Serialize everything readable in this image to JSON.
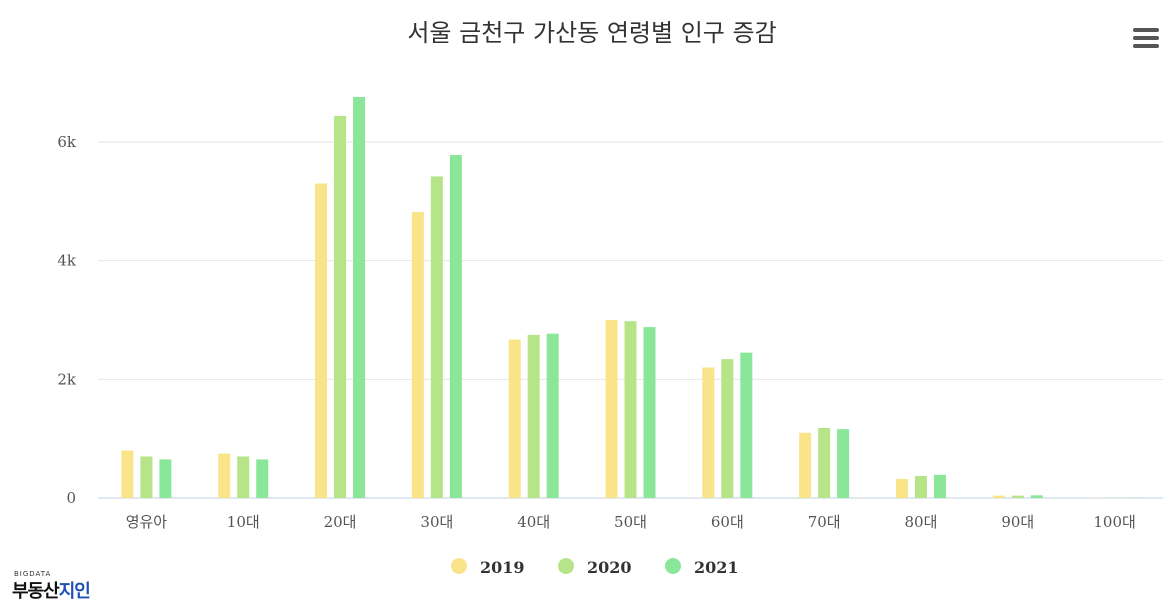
{
  "chart_data": {
    "type": "bar",
    "title": "서울 금천구 가산동 연령별 인구 증감",
    "categories": [
      "영유아",
      "10대",
      "20대",
      "30대",
      "40대",
      "50대",
      "60대",
      "70대",
      "80대",
      "90대",
      "100대"
    ],
    "series": [
      {
        "name": "2019",
        "color": "#f9e489",
        "values": [
          800,
          750,
          5300,
          4820,
          2670,
          3000,
          2200,
          1100,
          320,
          40,
          5
        ]
      },
      {
        "name": "2020",
        "color": "#b5e489",
        "values": [
          700,
          700,
          6440,
          5420,
          2750,
          2980,
          2340,
          1180,
          370,
          40,
          5
        ]
      },
      {
        "name": "2021",
        "color": "#8ae698",
        "values": [
          650,
          650,
          6760,
          5780,
          2770,
          2880,
          2450,
          1160,
          390,
          45,
          5
        ]
      }
    ],
    "yticks": [
      "0",
      "2k",
      "4k",
      "6k"
    ],
    "ylim": [
      0,
      7000
    ],
    "grid": true,
    "legend": "bottom-center"
  },
  "watermark": {
    "small": "BIGDATA",
    "main_left": "부동산",
    "main_right": "지인"
  },
  "menu_icon": "hamburger-icon"
}
